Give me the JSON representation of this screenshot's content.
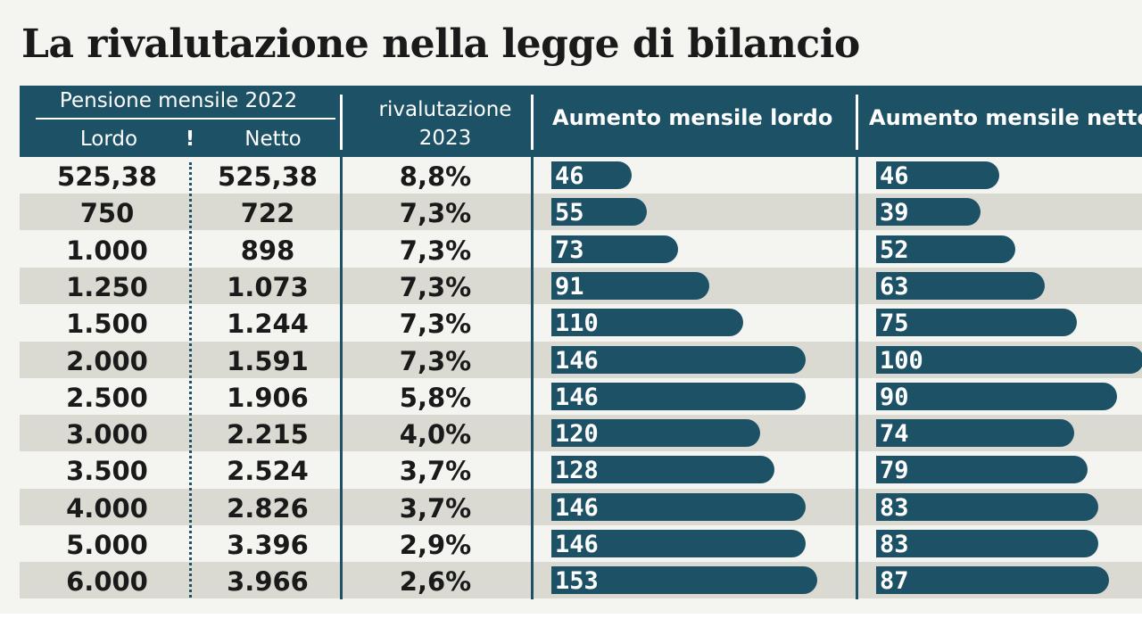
{
  "title": "La rivalutazione nella legge di bilancio",
  "header": {
    "pensione": "Pensione mensile 2022",
    "lordo": "Lordo",
    "marker": "!",
    "netto": "Netto",
    "rival_1": "rivalutazione",
    "rival_2": "2023",
    "aumento_lordo": "Aumento mensile lordo",
    "aumento_netto": "Aumento mensile netto"
  },
  "colors": {
    "accent": "#1d5166",
    "row_alt": "#dadad2",
    "background": "#f4f4f0"
  },
  "chart_data": {
    "type": "table",
    "title": "La rivalutazione nella legge di bilancio",
    "columns": [
      "Lordo",
      "Netto",
      "rivalutazione 2023",
      "Aumento mensile lordo",
      "Aumento mensile netto"
    ],
    "rows": [
      {
        "lordo": "525,38",
        "netto": "525,38",
        "rival": "8,8%",
        "aumento_lordo": 46,
        "aumento_netto": 46
      },
      {
        "lordo": "750",
        "netto": "722",
        "rival": "7,3%",
        "aumento_lordo": 55,
        "aumento_netto": 39
      },
      {
        "lordo": "1.000",
        "netto": "898",
        "rival": "7,3%",
        "aumento_lordo": 73,
        "aumento_netto": 52
      },
      {
        "lordo": "1.250",
        "netto": "1.073",
        "rival": "7,3%",
        "aumento_lordo": 91,
        "aumento_netto": 63
      },
      {
        "lordo": "1.500",
        "netto": "1.244",
        "rival": "7,3%",
        "aumento_lordo": 110,
        "aumento_netto": 75
      },
      {
        "lordo": "2.000",
        "netto": "1.591",
        "rival": "7,3%",
        "aumento_lordo": 146,
        "aumento_netto": 100
      },
      {
        "lordo": "2.500",
        "netto": "1.906",
        "rival": "5,8%",
        "aumento_lordo": 146,
        "aumento_netto": 90
      },
      {
        "lordo": "3.000",
        "netto": "2.215",
        "rival": "4,0%",
        "aumento_lordo": 120,
        "aumento_netto": 74
      },
      {
        "lordo": "3.500",
        "netto": "2.524",
        "rival": "3,7%",
        "aumento_lordo": 128,
        "aumento_netto": 79
      },
      {
        "lordo": "4.000",
        "netto": "2.826",
        "rival": "3,7%",
        "aumento_lordo": 146,
        "aumento_netto": 83
      },
      {
        "lordo": "5.000",
        "netto": "3.396",
        "rival": "2,9%",
        "aumento_lordo": 146,
        "aumento_netto": 83
      },
      {
        "lordo": "6.000",
        "netto": "3.966",
        "rival": "2,6%",
        "aumento_lordo": 153,
        "aumento_netto": 87
      }
    ]
  }
}
